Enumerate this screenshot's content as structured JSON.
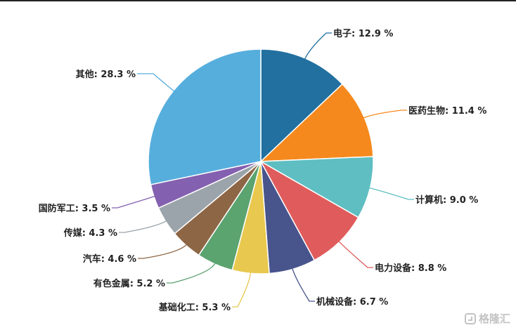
{
  "chart_data": {
    "type": "pie",
    "title": "",
    "start_angle_deg": 0,
    "slices": [
      {
        "label": "电子",
        "value": 12.9,
        "display": "12.9 %",
        "color": "#21709f"
      },
      {
        "label": "医药生物",
        "value": 11.4,
        "display": "11.4 %",
        "color": "#f5891d"
      },
      {
        "label": "计算机",
        "value": 9.0,
        "display": "9.0 %",
        "color": "#5ebec1"
      },
      {
        "label": "电力设备",
        "value": 8.8,
        "display": "8.8 %",
        "color": "#e05c5c"
      },
      {
        "label": "机械设备",
        "value": 6.7,
        "display": "6.7 %",
        "color": "#48548c"
      },
      {
        "label": "基础化工",
        "value": 5.3,
        "display": "5.3 %",
        "color": "#e8c84e"
      },
      {
        "label": "有色金属",
        "value": 5.2,
        "display": "5.2 %",
        "color": "#5ba36f"
      },
      {
        "label": "汽车",
        "value": 4.6,
        "display": "4.6 %",
        "color": "#8d6646"
      },
      {
        "label": "传媒",
        "value": 4.3,
        "display": "4.3 %",
        "color": "#9ba4aa"
      },
      {
        "label": "国防军工",
        "value": 3.5,
        "display": "3.5 %",
        "color": "#8460b0"
      },
      {
        "label": "其他",
        "value": 28.3,
        "display": "28.3 %",
        "color": "#56aedd"
      }
    ]
  },
  "watermark": {
    "text": "格隆汇"
  }
}
